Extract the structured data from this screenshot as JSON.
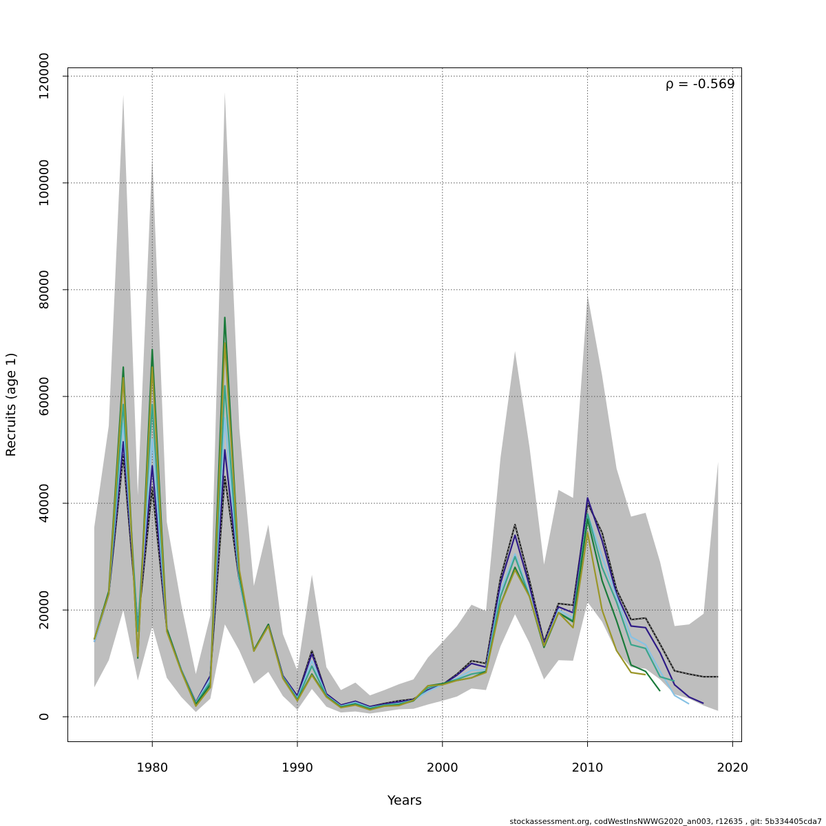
{
  "chart_data": {
    "type": "line",
    "title": "",
    "xlabel": "Years",
    "ylabel": "Recruits (age 1)",
    "xlim": [
      1974.2,
      2020.6
    ],
    "ylim": [
      -4600,
      121500
    ],
    "xticks": [
      1980,
      1990,
      2000,
      2010,
      2020
    ],
    "yticks": [
      0,
      20000,
      40000,
      60000,
      80000,
      100000,
      120000
    ],
    "grid": true,
    "annotation": "ρ = -0.569",
    "footer": "stockassessment.org, codWestInsNWWG2020_an003, r12635 , git: 5b334405cda7",
    "confidence_band": {
      "color": "#bebebe",
      "years": [
        1976,
        1977,
        1978,
        1979,
        1980,
        1981,
        1982,
        1983,
        1984,
        1985,
        1986,
        1987,
        1988,
        1989,
        1990,
        1991,
        1992,
        1993,
        1994,
        1995,
        1996,
        1997,
        1998,
        1999,
        2000,
        2001,
        2002,
        2003,
        2004,
        2005,
        2006,
        2007,
        2008,
        2009,
        2010,
        2011,
        2012,
        2013,
        2014,
        2015,
        2016,
        2017,
        2018,
        2019
      ],
      "upper": [
        35500,
        54500,
        116500,
        41500,
        105000,
        36500,
        21000,
        8000,
        19000,
        117000,
        54000,
        24500,
        36000,
        15500,
        8600,
        26600,
        9300,
        5000,
        6400,
        4000,
        5000,
        6100,
        7000,
        11100,
        14000,
        17000,
        21000,
        19800,
        48500,
        68500,
        50500,
        28500,
        42500,
        41000,
        79000,
        64000,
        46500,
        37500,
        38200,
        29000,
        17000,
        17300,
        19300,
        47800
      ],
      "lower": [
        5500,
        10600,
        20000,
        6800,
        17000,
        7300,
        3700,
        900,
        3400,
        17300,
        12400,
        6200,
        8400,
        3900,
        1300,
        5200,
        1900,
        800,
        1000,
        600,
        1000,
        1400,
        1500,
        2300,
        3000,
        3800,
        5300,
        5000,
        13200,
        19200,
        13800,
        7000,
        10600,
        10500,
        21500,
        17800,
        12200,
        9300,
        9000,
        7000,
        4200,
        3400,
        2100,
        1100
      ]
    },
    "series": [
      {
        "color": "#1a1a1a",
        "dashed_overlay": true,
        "x": [
          1976,
          1977,
          1978,
          1979,
          1980,
          1981,
          1982,
          1983,
          1984,
          1985,
          1986,
          1987,
          1988,
          1989,
          1990,
          1991,
          1992,
          1993,
          1994,
          1995,
          1996,
          1997,
          1998,
          1999,
          2000,
          2001,
          2002,
          2003,
          2004,
          2005,
          2006,
          2007,
          2008,
          2009,
          2010,
          2011,
          2012,
          2013,
          2014,
          2015,
          2016,
          2017,
          2018,
          2019
        ],
        "y": [
          14000,
          23000,
          49000,
          17000,
          43000,
          16500,
          8800,
          2700,
          7700,
          45000,
          25500,
          12400,
          17300,
          7700,
          3900,
          12400,
          4300,
          2200,
          2900,
          1900,
          2500,
          3000,
          3300,
          5000,
          6000,
          8000,
          10500,
          10000,
          26000,
          36000,
          25500,
          14000,
          21200,
          20900,
          40000,
          34500,
          23800,
          18200,
          18500,
          13600,
          8600,
          8000,
          7500,
          7500
        ]
      },
      {
        "color": "#2e1a86",
        "x": [
          1976,
          1977,
          1978,
          1979,
          1980,
          1981,
          1982,
          1983,
          1984,
          1985,
          1986,
          1987,
          1988,
          1989,
          1990,
          1991,
          1992,
          1993,
          1994,
          1995,
          1996,
          1997,
          1998,
          1999,
          2000,
          2001,
          2002,
          2003,
          2004,
          2005,
          2006,
          2007,
          2008,
          2009,
          2010,
          2011,
          2012,
          2013,
          2014,
          2015,
          2016,
          2017,
          2018
        ],
        "y": [
          14000,
          23000,
          51500,
          17000,
          47000,
          16500,
          8800,
          2700,
          7700,
          50000,
          25500,
          12400,
          17300,
          7700,
          3900,
          11800,
          4300,
          2200,
          2900,
          1900,
          2400,
          2800,
          3200,
          5000,
          6000,
          7800,
          10000,
          9300,
          25000,
          34000,
          24500,
          13700,
          20600,
          19500,
          41000,
          33000,
          23000,
          17000,
          16700,
          12000,
          6000,
          3700,
          2500
        ]
      },
      {
        "color": "#87c2e4",
        "x": [
          1976,
          1977,
          1978,
          1979,
          1980,
          1981,
          1982,
          1983,
          1984,
          1985,
          1986,
          1987,
          1988,
          1989,
          1990,
          1991,
          1992,
          1993,
          1994,
          1995,
          1996,
          1997,
          1998,
          1999,
          2000,
          2001,
          2002,
          2003,
          2004,
          2005,
          2006,
          2007,
          2008,
          2009,
          2010,
          2011,
          2012,
          2013,
          2014,
          2015,
          2016,
          2017
        ],
        "y": [
          14000,
          23000,
          55000,
          16500,
          52000,
          16500,
          8800,
          2600,
          7200,
          56000,
          25500,
          12300,
          17200,
          7500,
          3500,
          10500,
          4000,
          2000,
          2700,
          1700,
          2200,
          2500,
          3100,
          4800,
          6000,
          7200,
          8700,
          8800,
          23500,
          30500,
          23000,
          13300,
          20000,
          18500,
          38000,
          30000,
          22500,
          15000,
          13500,
          8500,
          4000,
          2400
        ]
      },
      {
        "color": "#3aa58c",
        "x": [
          1976,
          1977,
          1978,
          1979,
          1980,
          1981,
          1982,
          1983,
          1984,
          1985,
          1986,
          1987,
          1988,
          1989,
          1990,
          1991,
          1992,
          1993,
          1994,
          1995,
          1996,
          1997,
          1998,
          1999,
          2000,
          2001,
          2002,
          2003,
          2004,
          2005,
          2006,
          2007,
          2008,
          2009,
          2010,
          2011,
          2012,
          2013,
          2014,
          2015,
          2016
        ],
        "y": [
          14500,
          23000,
          58500,
          16000,
          58500,
          16500,
          8700,
          2500,
          6500,
          62000,
          26000,
          12300,
          17200,
          7400,
          3300,
          9500,
          3900,
          1900,
          2500,
          1600,
          2200,
          2400,
          3100,
          5400,
          6200,
          7000,
          8000,
          8500,
          22500,
          30000,
          22500,
          13200,
          19500,
          18000,
          38000,
          28000,
          21500,
          13500,
          12800,
          7500,
          6700
        ]
      },
      {
        "color": "#1a7a3a",
        "x": [
          1976,
          1977,
          1978,
          1979,
          1980,
          1981,
          1982,
          1983,
          1984,
          1985,
          1986,
          1987,
          1988,
          1989,
          1990,
          1991,
          1992,
          1993,
          1994,
          1995,
          1996,
          1997,
          1998,
          1999,
          2000,
          2001,
          2002,
          2003,
          2004,
          2005,
          2006,
          2007,
          2008,
          2009,
          2010,
          2011,
          2012,
          2013,
          2014,
          2015
        ],
        "y": [
          14500,
          23500,
          65500,
          11000,
          68800,
          16500,
          8600,
          2300,
          6000,
          74800,
          27000,
          12500,
          17300,
          7300,
          3100,
          8000,
          3800,
          1800,
          2300,
          1400,
          2000,
          2200,
          3000,
          5800,
          6200,
          6800,
          7300,
          8500,
          21000,
          28000,
          22500,
          13000,
          19500,
          17800,
          37000,
          25500,
          18000,
          9700,
          8500,
          4800
        ]
      },
      {
        "color": "#9a9628",
        "x": [
          1976,
          1977,
          1978,
          1979,
          1980,
          1981,
          1982,
          1983,
          1984,
          1985,
          1986,
          1987,
          1988,
          1989,
          1990,
          1991,
          1992,
          1993,
          1994,
          1995,
          1996,
          1997,
          1998,
          1999,
          2000,
          2001,
          2002,
          2003,
          2004,
          2005,
          2006,
          2007,
          2008,
          2009,
          2010,
          2011,
          2012,
          2013,
          2014
        ],
        "y": [
          14500,
          23000,
          63500,
          11300,
          65500,
          16000,
          8500,
          2000,
          5500,
          70000,
          27500,
          12300,
          17000,
          7200,
          3000,
          7800,
          3700,
          1700,
          2200,
          1300,
          2000,
          2100,
          3100,
          5800,
          6000,
          6800,
          7300,
          8300,
          21000,
          27500,
          22500,
          13300,
          19500,
          16700,
          34500,
          20000,
          12400,
          8300,
          7900
        ]
      }
    ]
  }
}
